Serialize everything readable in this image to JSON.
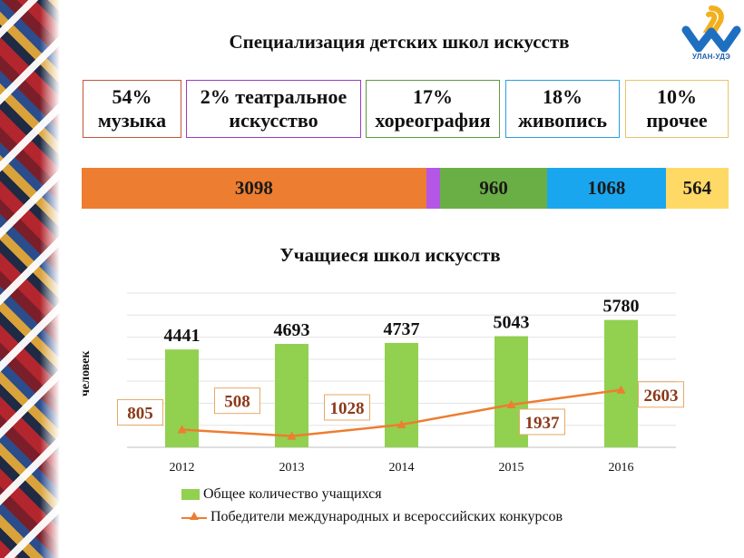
{
  "slide": {
    "title": "Специализация детских школ искусств",
    "logo_text": "УЛАН-УДЭ"
  },
  "categories": [
    {
      "percent": "54%",
      "name": "музыка",
      "border": "#c2553a"
    },
    {
      "percent": "2% театральное",
      "name": "искусство",
      "border": "#9a3bc4"
    },
    {
      "percent": "17%",
      "name": "хореография",
      "border": "#5e9a44"
    },
    {
      "percent": "18%",
      "name": "живопись",
      "border": "#2aa0dd"
    },
    {
      "percent": "10%",
      "name": "прочее",
      "border": "#e8c46a"
    }
  ],
  "stacked_bar": {
    "segments": [
      {
        "value": 3098,
        "label": "3098",
        "color": "#ed7d31"
      },
      {
        "value": 128,
        "label": "",
        "color": "#b457e6"
      },
      {
        "value": 960,
        "label": "960",
        "color": "#6aaf45"
      },
      {
        "value": 1068,
        "label": "1068",
        "color": "#1aa6ef"
      },
      {
        "value": 564,
        "label": "564",
        "color": "#ffd966"
      }
    ]
  },
  "chart_data": {
    "type": "bar",
    "title": "Учащиеся школ искусств",
    "ylabel": "человек",
    "categories": [
      "2012",
      "2013",
      "2014",
      "2015",
      "2016"
    ],
    "ylim": [
      0,
      7000
    ],
    "grid": true,
    "legend_position": "bottom",
    "series": [
      {
        "name": "Общее количество учащихся",
        "type": "bar",
        "color": "#92d050",
        "values": [
          4441,
          4693,
          4737,
          5043,
          5780
        ]
      },
      {
        "name": "Победители международных  и всероссийских  конкурсов",
        "type": "line",
        "color": "#ed7d31",
        "values": [
          805,
          508,
          1028,
          1937,
          2603
        ]
      }
    ]
  }
}
